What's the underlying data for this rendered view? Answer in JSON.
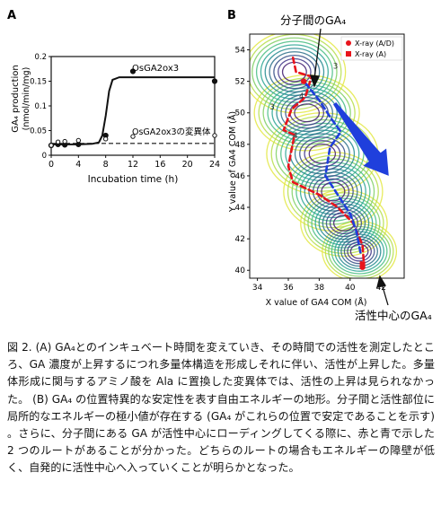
{
  "panel_a": {
    "label": "A",
    "ylabel_line1": "GA₄ production",
    "ylabel_line2": "(nmol/min/mg)",
    "xlabel": "Incubation time (h)",
    "series_label_wt": "OsGA2ox3",
    "series_label_mut": "OsGA2ox3の変異体",
    "chart_data": {
      "type": "scatter",
      "x_ticks": [
        0,
        4,
        8,
        12,
        16,
        20,
        24
      ],
      "y_ticks": [
        0,
        0.05,
        0.1,
        0.15,
        0.2
      ],
      "y_tick_labels": [
        "0",
        "0.05",
        "0.1",
        "0.15",
        "0.2"
      ],
      "xlim": [
        0,
        24
      ],
      "ylim": [
        0,
        0.2
      ],
      "series": [
        {
          "name": "OsGA2ox3",
          "marker": "filled-circle",
          "x": [
            0,
            1,
            2,
            4,
            8,
            12,
            24
          ],
          "y": [
            0.02,
            0.022,
            0.021,
            0.022,
            0.04,
            0.17,
            0.15
          ]
        },
        {
          "name": "OsGA2ox3の変異体",
          "marker": "open-circle",
          "x": [
            0,
            1,
            2,
            4,
            8,
            12,
            24
          ],
          "y": [
            0.02,
            0.027,
            0.028,
            0.03,
            0.033,
            0.038,
            0.04
          ]
        }
      ],
      "wt_fit": {
        "x": [
          0,
          4,
          6,
          7,
          7.5,
          8,
          8.5,
          9,
          10,
          12,
          16,
          24
        ],
        "y": [
          0.022,
          0.022,
          0.023,
          0.026,
          0.04,
          0.08,
          0.13,
          0.153,
          0.158,
          0.158,
          0.158,
          0.158
        ]
      },
      "mut_fit_y": 0.024
    }
  },
  "panel_b": {
    "label": "B",
    "xlabel": "X value of GA4 COM (Å)",
    "ylabel": "Y value of GA4 COM (Å)",
    "annotation_top": "分子間のGA₄",
    "annotation_bottom": "活性中心のGA₄",
    "legend_red_dot": "X-ray (A/D)",
    "legend_red_square": "X-ray (A)",
    "contour_labels": [
      "3",
      "4",
      "3",
      "4"
    ],
    "chart_data": {
      "type": "heatmap",
      "x_ticks": [
        34,
        36,
        38,
        40,
        42
      ],
      "y_ticks": [
        40,
        42,
        44,
        46,
        48,
        50,
        52,
        54
      ],
      "xlim": [
        33.5,
        43.5
      ],
      "ylim": [
        39.5,
        55
      ],
      "xray_AD": [
        [
          37.0,
          52.0
        ],
        [
          40.8,
          40.2
        ]
      ],
      "xray_A": [
        [
          40.8,
          40.4
        ]
      ],
      "red_route": {
        "x": [
          36.3,
          36.5,
          37.5,
          37.1,
          36.2,
          35.7,
          36.4,
          36.0,
          36.3,
          38.0,
          39.2,
          40.2,
          40.8,
          40.9
        ],
        "y": [
          53.5,
          52.6,
          52.3,
          51.0,
          50.2,
          48.9,
          48.6,
          46.6,
          45.6,
          44.8,
          44.0,
          43.0,
          41.6,
          40.3
        ]
      },
      "blue_route": {
        "x": [
          37.1,
          38.0,
          38.8,
          39.4,
          38.7,
          38.4,
          39.2,
          40.0,
          40.4,
          40.7
        ],
        "y": [
          51.9,
          50.8,
          49.6,
          48.8,
          47.8,
          46.0,
          44.8,
          43.6,
          42.5,
          41.0
        ]
      },
      "arrow": {
        "from": [
          39.0,
          50.6
        ],
        "to": [
          42.5,
          46.0
        ],
        "color": "#1f3fdc"
      }
    }
  },
  "caption": {
    "text": "図 2. (A) GA₄とのインキュベート時間を変えていき、その時間での活性を測定したところ、GA 濃度が上昇するにつれ多量体構造を形成しそれに伴い、活性が上昇した。多量体形成に関与するアミノ酸を Ala に置換した変異体では、活性の上昇は見られなかった。 (B) GA₄ の位置特異的な安定性を表す自由エネルギーの地形。分子間と活性部位に局所的なエネルギーの極小値が存在する (GA₄ がこれらの位置で安定であることを示す) 。さらに、分子間にある GA が活性中心にローディングしてくる際に、赤と青で示した 2 つのルートがあることが分かった。どちらのルートの場合もエネルギーの障壁が低く、自発的に活性中心へ入っていくことが明らかとなった。"
  }
}
